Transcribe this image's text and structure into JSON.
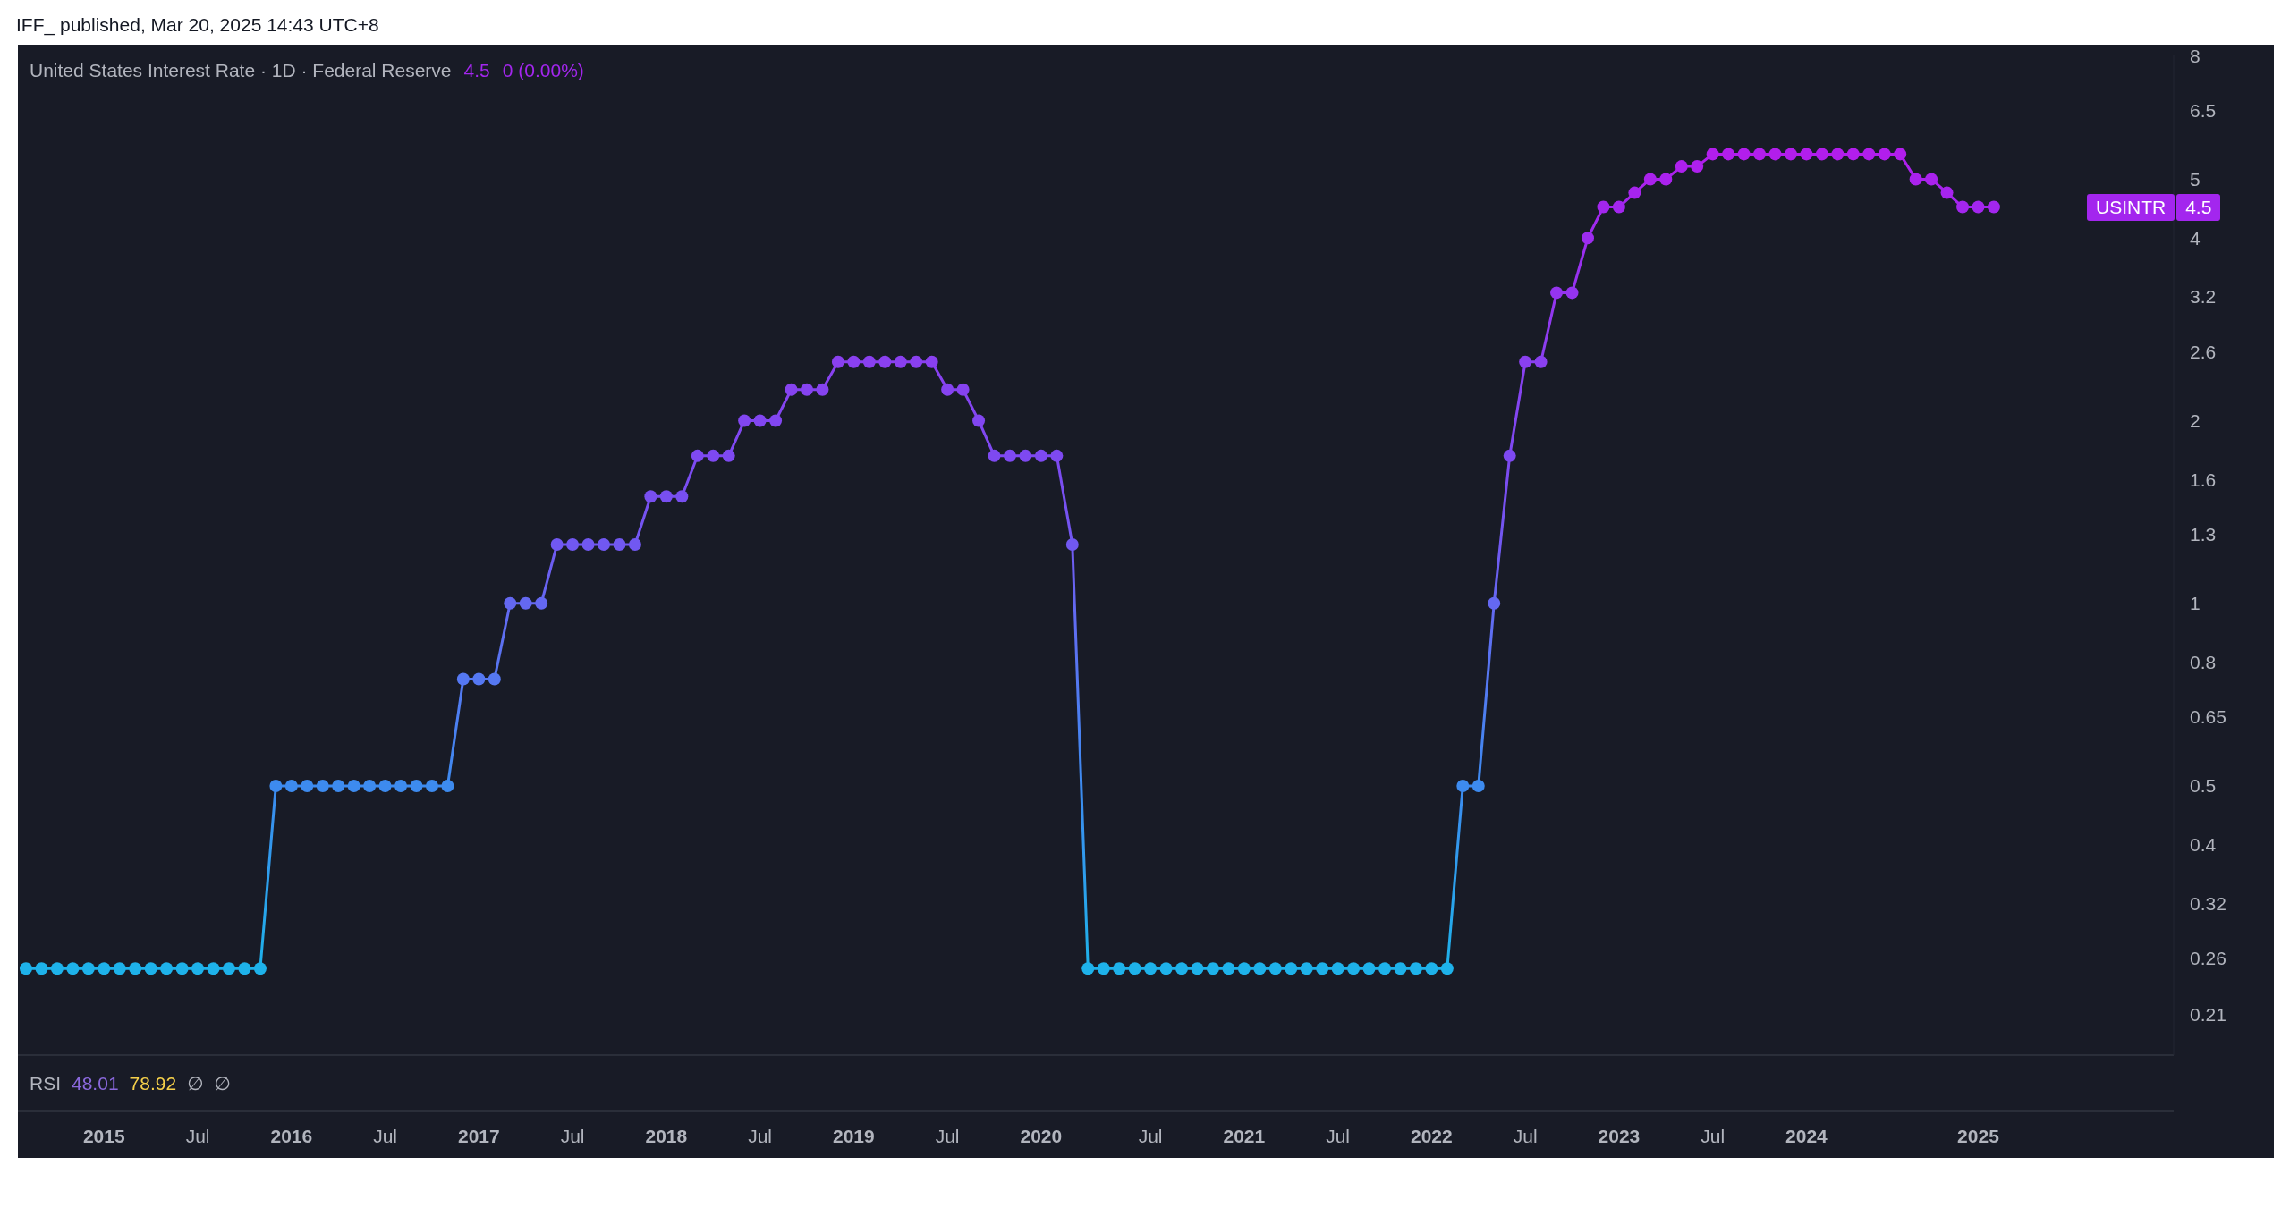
{
  "chart_data": {
    "type": "line",
    "title": "United States Interest Rate · 1D · Federal Reserve",
    "annotations": [
      "IFF_ published, Mar 20, 2025 14:43 UTC+8",
      "4.5",
      "0 (0.00%)",
      "USINTR",
      "4.5",
      "RSI",
      "48.01",
      "78.92",
      "∅",
      "∅"
    ],
    "categories": [
      null,
      null,
      null,
      null,
      null,
      "2015",
      null,
      null,
      null,
      null,
      null,
      "Jul",
      null,
      null,
      null,
      null,
      null,
      "2016",
      null,
      null,
      null,
      null,
      null,
      "Jul",
      null,
      null,
      null,
      null,
      null,
      "2017",
      null,
      null,
      null,
      null,
      null,
      "Jul",
      null,
      null,
      null,
      null,
      null,
      "2018",
      null,
      null,
      null,
      null,
      null,
      "Jul",
      null,
      null,
      null,
      null,
      null,
      "2019",
      null,
      null,
      null,
      null,
      null,
      "Jul",
      null,
      null,
      null,
      null,
      null,
      "2020",
      null,
      null,
      null,
      null,
      null,
      null,
      "Jul",
      null,
      null,
      null,
      null,
      null,
      "2021",
      null,
      null,
      null,
      null,
      null,
      "Jul",
      null,
      null,
      null,
      null,
      null,
      "2022",
      null,
      null,
      null,
      null,
      null,
      "Jul",
      null,
      null,
      null,
      null,
      null,
      "2023",
      null,
      null,
      null,
      null,
      null,
      "Jul",
      null,
      null,
      null,
      null,
      null,
      "2024",
      null,
      null,
      null,
      null,
      null,
      null,
      null,
      null,
      null,
      null,
      "2025",
      null,
      null,
      null,
      null,
      null,
      null,
      null,
      null,
      null,
      null,
      null,
      null
    ],
    "values": [
      0.25,
      0.25,
      0.25,
      0.25,
      0.25,
      0.25,
      0.25,
      0.25,
      0.25,
      0.25,
      0.25,
      0.25,
      0.25,
      0.25,
      0.25,
      0.25,
      0.5,
      0.5,
      0.5,
      0.5,
      0.5,
      0.5,
      0.5,
      0.5,
      0.5,
      0.5,
      0.5,
      0.5,
      0.75,
      0.75,
      0.75,
      1,
      1,
      1,
      1.25,
      1.25,
      1.25,
      1.25,
      1.25,
      1.25,
      1.5,
      1.5,
      1.5,
      1.75,
      1.75,
      1.75,
      2,
      2,
      2,
      2.25,
      2.25,
      2.25,
      2.5,
      2.5,
      2.5,
      2.5,
      2.5,
      2.5,
      2.5,
      2.25,
      2.25,
      2,
      1.75,
      1.75,
      1.75,
      1.75,
      1.75,
      1.25,
      0.25,
      0.25,
      0.25,
      0.25,
      0.25,
      0.25,
      0.25,
      0.25,
      0.25,
      0.25,
      0.25,
      0.25,
      0.25,
      0.25,
      0.25,
      0.25,
      0.25,
      0.25,
      0.25,
      0.25,
      0.25,
      0.25,
      0.25,
      0.25,
      0.5,
      0.5,
      1,
      1.75,
      2.5,
      2.5,
      3.25,
      3.25,
      4,
      4.5,
      4.5,
      4.75,
      5,
      5,
      5.25,
      5.25,
      5.5,
      5.5,
      5.5,
      5.5,
      5.5,
      5.5,
      5.5,
      5.5,
      5.5,
      5.5,
      5.5,
      5.5,
      5.5,
      5,
      5,
      4.75,
      4.5,
      4.5,
      4.5,
      null,
      null,
      null,
      null,
      null,
      null,
      null,
      null,
      null,
      null,
      null
    ],
    "colors": [
      "#1eb2ea",
      "#1eb2ea",
      "#1eb2ea",
      "#1eb2ea",
      "#1eb2ea",
      "#1eb2ea",
      "#1eb2ea",
      "#1eb2ea",
      "#1eb2ea",
      "#1eb2ea",
      "#1eb2ea",
      "#1eb2ea",
      "#1eb2ea",
      "#1eb2ea",
      "#1eb2ea",
      "#1eb2ea",
      "#3d8bef",
      "#3d8bef",
      "#3d8bef",
      "#3d8bef",
      "#3d8bef",
      "#3d8bef",
      "#3d8bef",
      "#3d8bef",
      "#3d8bef",
      "#3d8bef",
      "#3d8bef",
      "#3d8bef",
      "#5578f2",
      "#5578f2",
      "#5578f2",
      "#6468f1",
      "#6468f1",
      "#6468f1",
      "#7158f1",
      "#7158f1",
      "#7158f1",
      "#7158f1",
      "#7158f1",
      "#7158f1",
      "#784ff1",
      "#784ff1",
      "#784ff1",
      "#7e49f1",
      "#7e49f1",
      "#7e49f1",
      "#8246f1",
      "#8246f1",
      "#8246f1",
      "#8643f0",
      "#8643f0",
      "#8643f0",
      "#8a40f0",
      "#8a40f0",
      "#8a40f0",
      "#8a40f0",
      "#8a40f0",
      "#8a40f0",
      "#8a40f0",
      "#8643f0",
      "#8643f0",
      "#8246f1",
      "#7e49f1",
      "#7e49f1",
      "#7e49f1",
      "#7e49f1",
      "#7e49f1",
      "#7158f1",
      "#1eb2ea",
      "#1eb2ea",
      "#1eb2ea",
      "#1eb2ea",
      "#1eb2ea",
      "#1eb2ea",
      "#1eb2ea",
      "#1eb2ea",
      "#1eb2ea",
      "#1eb2ea",
      "#1eb2ea",
      "#1eb2ea",
      "#1eb2ea",
      "#1eb2ea",
      "#1eb2ea",
      "#1eb2ea",
      "#1eb2ea",
      "#1eb2ea",
      "#1eb2ea",
      "#1eb2ea",
      "#1eb2ea",
      "#1eb2ea",
      "#1eb2ea",
      "#1eb2ea",
      "#3d8bef",
      "#3d8bef",
      "#6468f1",
      "#7e49f1",
      "#8a40f0",
      "#8a40f0",
      "#9534ef",
      "#9534ef",
      "#9d2cef",
      "#a326ee",
      "#a326ee",
      "#a724ee",
      "#aa22ed",
      "#aa22ed",
      "#ae20ed",
      "#ae20ed",
      "#b21eec",
      "#b21eec",
      "#b21eec",
      "#b21eec",
      "#b21eec",
      "#b21eec",
      "#b21eec",
      "#b21eec",
      "#b21eec",
      "#b21eec",
      "#b21eec",
      "#b21eec",
      "#b21eec",
      "#aa22ed",
      "#aa22ed",
      "#a724ee",
      "#a326ee",
      "#a326ee",
      "#a326ee",
      null,
      null,
      null,
      null,
      null,
      null,
      null,
      null,
      null,
      null,
      null
    ],
    "ylim": [
      0.18,
      8
    ],
    "yticks": [
      0.21,
      0.26,
      0.32,
      0.4,
      0.5,
      0.65,
      0.8,
      1,
      1.3,
      1.6,
      2,
      2.6,
      3.2,
      4,
      5,
      6.5,
      8
    ],
    "log": true,
    "marker": "circle",
    "line_style": "solid"
  }
}
